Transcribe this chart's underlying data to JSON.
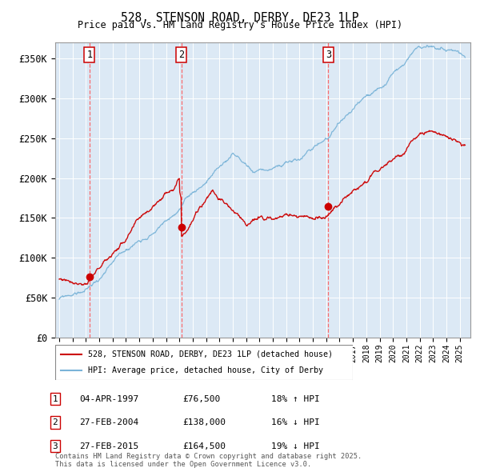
{
  "title": "528, STENSON ROAD, DERBY, DE23 1LP",
  "subtitle": "Price paid vs. HM Land Registry's House Price Index (HPI)",
  "ylabel_ticks": [
    "£0",
    "£50K",
    "£100K",
    "£150K",
    "£200K",
    "£250K",
    "£300K",
    "£350K"
  ],
  "ytick_values": [
    0,
    50000,
    100000,
    150000,
    200000,
    250000,
    300000,
    350000
  ],
  "ylim": [
    0,
    370000
  ],
  "xlim_start": 1994.7,
  "xlim_end": 2025.8,
  "background_color": "#dce9f5",
  "sale_points": [
    {
      "date": 1997.27,
      "price": 76500,
      "label": "1"
    },
    {
      "date": 2004.15,
      "price": 138000,
      "label": "2"
    },
    {
      "date": 2015.15,
      "price": 164500,
      "label": "3"
    }
  ],
  "legend_line1": "528, STENSON ROAD, DERBY, DE23 1LP (detached house)",
  "legend_line2": "HPI: Average price, detached house, City of Derby",
  "table_rows": [
    {
      "num": "1",
      "date": "04-APR-1997",
      "price": "£76,500",
      "pct": "18% ↑ HPI"
    },
    {
      "num": "2",
      "date": "27-FEB-2004",
      "price": "£138,000",
      "pct": "16% ↓ HPI"
    },
    {
      "num": "3",
      "date": "27-FEB-2015",
      "price": "£164,500",
      "pct": "19% ↓ HPI"
    }
  ],
  "footer": "Contains HM Land Registry data © Crown copyright and database right 2025.\nThis data is licensed under the Open Government Licence v3.0.",
  "hpi_color": "#7ab4d8",
  "price_color": "#cc0000",
  "vline_color": "#ff5555",
  "grid_color": "#ffffff",
  "marker_color": "#cc0000"
}
